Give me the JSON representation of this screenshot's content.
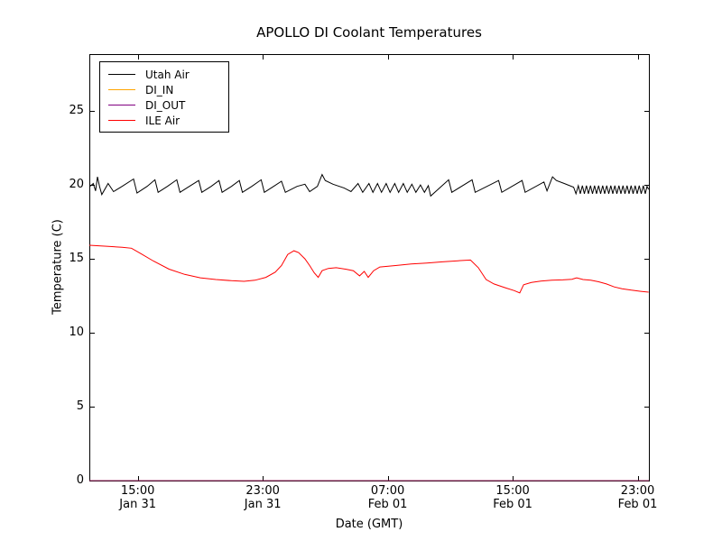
{
  "chart_data": {
    "type": "line",
    "title": "APOLLO DI Coolant Temperatures",
    "xlabel": "Date (GMT)",
    "ylabel": "Temperature (C)",
    "background": "#ffffff",
    "frame_color": "#000000",
    "grid": false,
    "legend_position": "upper left",
    "x_range": [
      11.9,
      47.72
    ],
    "y_range": [
      0,
      28.85
    ],
    "x_unit": "hours since Jan 31 00:00 GMT",
    "x_ticks": [
      {
        "pos": 15,
        "time": "15:00",
        "date": "Jan 31"
      },
      {
        "pos": 23,
        "time": "23:00",
        "date": "Jan 31"
      },
      {
        "pos": 31,
        "time": "07:00",
        "date": "Feb 01"
      },
      {
        "pos": 39,
        "time": "15:00",
        "date": "Feb 01"
      },
      {
        "pos": 47,
        "time": "23:00",
        "date": "Feb 01"
      }
    ],
    "y_ticks": [
      0,
      5,
      10,
      15,
      20,
      25
    ],
    "series": [
      {
        "name": "Utah Air",
        "color": "#000000",
        "opacity": 1,
        "points": [
          [
            11.9,
            19.9
          ],
          [
            12.0,
            19.95
          ],
          [
            12.15,
            20.1
          ],
          [
            12.3,
            19.6
          ],
          [
            12.42,
            20.55
          ],
          [
            12.55,
            19.9
          ],
          [
            12.7,
            19.35
          ],
          [
            13.1,
            20.1
          ],
          [
            13.45,
            19.55
          ],
          [
            14.0,
            19.9
          ],
          [
            14.73,
            20.4
          ],
          [
            14.95,
            19.45
          ],
          [
            15.6,
            19.9
          ],
          [
            16.1,
            20.35
          ],
          [
            16.3,
            19.5
          ],
          [
            16.9,
            19.9
          ],
          [
            17.5,
            20.35
          ],
          [
            17.7,
            19.5
          ],
          [
            18.3,
            19.9
          ],
          [
            18.9,
            20.3
          ],
          [
            19.1,
            19.5
          ],
          [
            19.7,
            19.9
          ],
          [
            20.2,
            20.3
          ],
          [
            20.4,
            19.5
          ],
          [
            21.0,
            19.9
          ],
          [
            21.5,
            20.3
          ],
          [
            21.7,
            19.5
          ],
          [
            22.3,
            19.9
          ],
          [
            22.9,
            20.35
          ],
          [
            23.1,
            19.5
          ],
          [
            23.7,
            19.9
          ],
          [
            24.2,
            20.25
          ],
          [
            24.45,
            19.5
          ],
          [
            25.2,
            19.9
          ],
          [
            25.7,
            20.05
          ],
          [
            26.0,
            19.55
          ],
          [
            26.5,
            19.9
          ],
          [
            26.8,
            20.7
          ],
          [
            27.0,
            20.3
          ],
          [
            27.5,
            20.05
          ],
          [
            28.2,
            19.8
          ],
          [
            28.65,
            19.55
          ],
          [
            29.1,
            20.1
          ],
          [
            29.4,
            19.5
          ],
          [
            29.8,
            20.1
          ],
          [
            30.05,
            19.5
          ],
          [
            30.35,
            20.1
          ],
          [
            30.6,
            19.5
          ],
          [
            30.9,
            20.1
          ],
          [
            31.15,
            19.5
          ],
          [
            31.45,
            20.1
          ],
          [
            31.7,
            19.5
          ],
          [
            32.0,
            20.1
          ],
          [
            32.25,
            19.5
          ],
          [
            32.55,
            20.05
          ],
          [
            32.8,
            19.5
          ],
          [
            33.1,
            20.0
          ],
          [
            33.35,
            19.5
          ],
          [
            33.6,
            19.95
          ],
          [
            33.75,
            19.25
          ],
          [
            34.9,
            20.35
          ],
          [
            35.1,
            19.5
          ],
          [
            36.4,
            20.35
          ],
          [
            36.6,
            19.5
          ],
          [
            38.1,
            20.3
          ],
          [
            38.3,
            19.5
          ],
          [
            39.6,
            20.3
          ],
          [
            39.8,
            19.5
          ],
          [
            41.0,
            20.2
          ],
          [
            41.2,
            19.6
          ],
          [
            41.55,
            20.55
          ],
          [
            41.8,
            20.3
          ],
          [
            42.3,
            20.1
          ],
          [
            42.9,
            19.85
          ],
          [
            43.05,
            19.4
          ],
          [
            43.2,
            19.95
          ],
          [
            43.33,
            19.4
          ],
          [
            43.46,
            19.95
          ],
          [
            43.59,
            19.4
          ],
          [
            43.72,
            19.95
          ],
          [
            43.85,
            19.4
          ],
          [
            43.98,
            19.95
          ],
          [
            44.11,
            19.4
          ],
          [
            44.24,
            19.95
          ],
          [
            44.37,
            19.4
          ],
          [
            44.5,
            19.95
          ],
          [
            44.63,
            19.4
          ],
          [
            44.76,
            19.95
          ],
          [
            44.89,
            19.4
          ],
          [
            45.02,
            19.95
          ],
          [
            45.15,
            19.4
          ],
          [
            45.28,
            19.95
          ],
          [
            45.41,
            19.4
          ],
          [
            45.54,
            19.95
          ],
          [
            45.67,
            19.4
          ],
          [
            45.8,
            19.95
          ],
          [
            45.93,
            19.4
          ],
          [
            46.06,
            19.95
          ],
          [
            46.19,
            19.4
          ],
          [
            46.32,
            19.95
          ],
          [
            46.45,
            19.4
          ],
          [
            46.58,
            19.95
          ],
          [
            46.71,
            19.4
          ],
          [
            46.84,
            19.95
          ],
          [
            46.97,
            19.4
          ],
          [
            47.1,
            19.95
          ],
          [
            47.23,
            19.4
          ],
          [
            47.36,
            19.95
          ],
          [
            47.49,
            19.4
          ],
          [
            47.6,
            19.9
          ],
          [
            47.7,
            19.7
          ]
        ]
      },
      {
        "name": "DI_IN",
        "color": "#ffa500",
        "opacity": 0.9,
        "points": [
          [
            11.9,
            0.0
          ],
          [
            47.72,
            0.0
          ]
        ]
      },
      {
        "name": "DI_OUT",
        "color": "#800080",
        "opacity": 0.75,
        "points": [
          [
            11.9,
            0.0
          ],
          [
            47.72,
            0.0
          ]
        ]
      },
      {
        "name": "ILE Air",
        "color": "#ff0000",
        "opacity": 1,
        "points": [
          [
            11.9,
            15.92
          ],
          [
            13.0,
            15.85
          ],
          [
            14.0,
            15.78
          ],
          [
            14.6,
            15.72
          ],
          [
            15.2,
            15.35
          ],
          [
            16.0,
            14.85
          ],
          [
            17.0,
            14.3
          ],
          [
            18.0,
            13.95
          ],
          [
            19.0,
            13.72
          ],
          [
            20.0,
            13.6
          ],
          [
            21.0,
            13.52
          ],
          [
            21.8,
            13.48
          ],
          [
            22.5,
            13.55
          ],
          [
            23.2,
            13.75
          ],
          [
            23.8,
            14.1
          ],
          [
            24.2,
            14.55
          ],
          [
            24.6,
            15.3
          ],
          [
            25.0,
            15.55
          ],
          [
            25.3,
            15.42
          ],
          [
            25.7,
            15.0
          ],
          [
            26.0,
            14.55
          ],
          [
            26.3,
            14.05
          ],
          [
            26.55,
            13.75
          ],
          [
            26.8,
            14.2
          ],
          [
            27.2,
            14.35
          ],
          [
            27.7,
            14.4
          ],
          [
            28.3,
            14.3
          ],
          [
            28.8,
            14.2
          ],
          [
            29.2,
            13.85
          ],
          [
            29.5,
            14.15
          ],
          [
            29.75,
            13.75
          ],
          [
            30.1,
            14.2
          ],
          [
            30.5,
            14.45
          ],
          [
            31.5,
            14.55
          ],
          [
            32.5,
            14.65
          ],
          [
            33.5,
            14.72
          ],
          [
            34.5,
            14.8
          ],
          [
            35.5,
            14.87
          ],
          [
            36.3,
            14.92
          ],
          [
            36.8,
            14.4
          ],
          [
            37.3,
            13.6
          ],
          [
            37.8,
            13.3
          ],
          [
            38.5,
            13.05
          ],
          [
            39.1,
            12.85
          ],
          [
            39.45,
            12.7
          ],
          [
            39.7,
            13.25
          ],
          [
            40.2,
            13.4
          ],
          [
            40.8,
            13.5
          ],
          [
            41.5,
            13.55
          ],
          [
            42.2,
            13.58
          ],
          [
            42.8,
            13.62
          ],
          [
            43.1,
            13.72
          ],
          [
            43.5,
            13.6
          ],
          [
            44.0,
            13.55
          ],
          [
            44.5,
            13.45
          ],
          [
            45.0,
            13.3
          ],
          [
            45.5,
            13.1
          ],
          [
            46.0,
            12.98
          ],
          [
            46.6,
            12.88
          ],
          [
            47.2,
            12.8
          ],
          [
            47.7,
            12.75
          ]
        ]
      }
    ]
  }
}
